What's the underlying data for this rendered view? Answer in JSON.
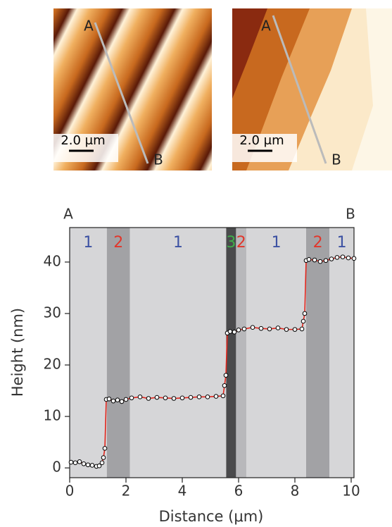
{
  "images": [
    {
      "start_label": "A",
      "end_label": "B",
      "scale_label": "2.0 μm"
    },
    {
      "start_label": "A",
      "end_label": "B",
      "scale_label": "2.0 μm"
    }
  ],
  "chart_data": {
    "type": "line",
    "start_label": "A",
    "end_label": "B",
    "x_label": "Distance (μm)",
    "y_label": "Height (nm)",
    "x": [
      0.05,
      0.2,
      0.35,
      0.5,
      0.65,
      0.8,
      0.95,
      1.05,
      1.15,
      1.2,
      1.25,
      1.3,
      1.4,
      1.55,
      1.7,
      1.85,
      2.0,
      2.2,
      2.5,
      2.8,
      3.1,
      3.4,
      3.7,
      4.0,
      4.3,
      4.6,
      4.9,
      5.2,
      5.45,
      5.5,
      5.55,
      5.6,
      5.7,
      5.85,
      6.0,
      6.2,
      6.5,
      6.8,
      7.1,
      7.4,
      7.7,
      8.0,
      8.25,
      8.3,
      8.35,
      8.4,
      8.5,
      8.7,
      8.9,
      9.1,
      9.3,
      9.5,
      9.7,
      9.9,
      10.1
    ],
    "values": [
      1.1,
      1.0,
      1.2,
      0.8,
      0.6,
      0.5,
      0.3,
      0.4,
      1.0,
      2.0,
      3.8,
      13.3,
      13.4,
      13.0,
      13.2,
      12.9,
      13.3,
      13.6,
      13.8,
      13.5,
      13.7,
      13.6,
      13.5,
      13.6,
      13.7,
      13.8,
      13.8,
      13.9,
      14.0,
      16.0,
      18.0,
      26.2,
      26.5,
      26.4,
      26.8,
      27.0,
      27.3,
      27.1,
      27.0,
      27.2,
      26.9,
      26.9,
      27.0,
      28.5,
      30.0,
      40.3,
      40.5,
      40.4,
      40.1,
      40.3,
      40.6,
      40.9,
      41.0,
      40.8,
      40.7
    ],
    "color": "#e2261d",
    "marker_color": "#000000",
    "xlim": [
      0,
      10.1
    ],
    "ylim": [
      -1.9,
      46.7
    ],
    "xticks": [
      0,
      2,
      4,
      6,
      8,
      10
    ],
    "yticks": [
      0,
      10,
      20,
      30,
      40
    ],
    "regions": [
      {
        "label": "1",
        "label_color": "#3d52a3",
        "start": 0,
        "end": 1.32,
        "fill": "#d6d6d8"
      },
      {
        "label": "2",
        "label_color": "#e2362b",
        "start": 1.32,
        "end": 2.14,
        "fill": "#a2a2a5"
      },
      {
        "label": "1",
        "label_color": "#3d52a3",
        "start": 2.14,
        "end": 5.56,
        "fill": "#d6d6d8"
      },
      {
        "label": "3",
        "label_color": "#3fae49",
        "start": 5.56,
        "end": 5.91,
        "fill": "#4a4a4c"
      },
      {
        "label": "2",
        "label_color": "#e2362b",
        "start": 5.91,
        "end": 6.28,
        "fill": "#b8b8bb"
      },
      {
        "label": "1",
        "label_color": "#3d52a3",
        "start": 6.28,
        "end": 8.4,
        "fill": "#d6d6d8"
      },
      {
        "label": "2",
        "label_color": "#e2362b",
        "start": 8.4,
        "end": 9.23,
        "fill": "#a2a2a5"
      },
      {
        "label": "1",
        "label_color": "#3d52a3",
        "start": 9.23,
        "end": 10.1,
        "fill": "#d6d6d8"
      }
    ]
  }
}
